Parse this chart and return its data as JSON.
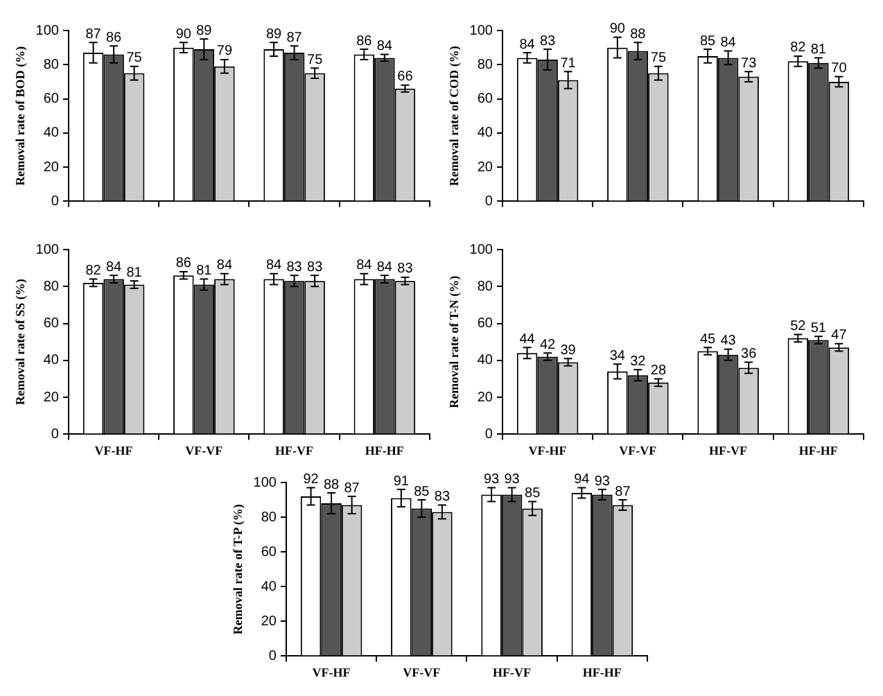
{
  "chart_data": [
    {
      "type": "bar",
      "ylabel": "Removal rate of BOD (%)",
      "categories": [
        null,
        null,
        null,
        null
      ],
      "ylim": [
        0,
        100
      ],
      "yticks": [
        0,
        20,
        40,
        60,
        80,
        100
      ],
      "data_labels": true,
      "legend": false,
      "grid": false,
      "series": [
        {
          "color": "#ffffff",
          "values": [
            87,
            90,
            89,
            86
          ],
          "errors": [
            6,
            3,
            4,
            3
          ]
        },
        {
          "color": "#555555",
          "values": [
            86,
            89,
            87,
            84
          ],
          "errors": [
            5,
            6,
            4,
            2
          ]
        },
        {
          "color": "#cccccc",
          "values": [
            75,
            79,
            75,
            66
          ],
          "errors": [
            4,
            4,
            3,
            2
          ]
        }
      ]
    },
    {
      "type": "bar",
      "ylabel": "Removal rate of COD (%)",
      "categories": [
        null,
        null,
        null,
        null
      ],
      "ylim": [
        0,
        100
      ],
      "yticks": [
        0,
        20,
        40,
        60,
        80,
        100
      ],
      "data_labels": true,
      "legend": false,
      "grid": false,
      "series": [
        {
          "color": "#ffffff",
          "values": [
            84,
            90,
            85,
            82
          ],
          "errors": [
            3,
            6,
            4,
            3
          ]
        },
        {
          "color": "#555555",
          "values": [
            83,
            88,
            84,
            81
          ],
          "errors": [
            6,
            5,
            4,
            3
          ]
        },
        {
          "color": "#cccccc",
          "values": [
            71,
            75,
            73,
            70
          ],
          "errors": [
            5,
            4,
            3,
            3
          ]
        }
      ]
    },
    {
      "type": "bar",
      "ylabel": "Removal rate of SS (%)",
      "categories": [
        "VF-HF",
        "VF-VF",
        "HF-VF",
        "HF-HF"
      ],
      "ylim": [
        0,
        100
      ],
      "yticks": [
        0,
        20,
        40,
        60,
        80,
        100
      ],
      "data_labels": true,
      "legend": false,
      "grid": false,
      "series": [
        {
          "color": "#ffffff",
          "values": [
            82,
            86,
            84,
            84
          ],
          "errors": [
            2,
            2,
            3,
            3
          ]
        },
        {
          "color": "#555555",
          "values": [
            84,
            81,
            83,
            84
          ],
          "errors": [
            2,
            3,
            3,
            2
          ]
        },
        {
          "color": "#cccccc",
          "values": [
            81,
            84,
            83,
            83
          ],
          "errors": [
            2,
            3,
            3,
            2
          ]
        }
      ]
    },
    {
      "type": "bar",
      "ylabel": "Removal rate of T-N (%)",
      "categories": [
        "VF-HF",
        "VF-VF",
        "HF-VF",
        "HF-HF"
      ],
      "ylim": [
        0,
        100
      ],
      "yticks": [
        0,
        20,
        40,
        60,
        80,
        100
      ],
      "data_labels": true,
      "legend": false,
      "grid": false,
      "series": [
        {
          "color": "#ffffff",
          "values": [
            44,
            34,
            45,
            52
          ],
          "errors": [
            3,
            4,
            2,
            2
          ]
        },
        {
          "color": "#555555",
          "values": [
            42,
            32,
            43,
            51
          ],
          "errors": [
            2,
            3,
            3,
            2
          ]
        },
        {
          "color": "#cccccc",
          "values": [
            39,
            28,
            36,
            47
          ],
          "errors": [
            2,
            2,
            3,
            2
          ]
        }
      ]
    },
    {
      "type": "bar",
      "ylabel": "Removal rate of T-P (%)",
      "categories": [
        "VF-HF",
        "VF-VF",
        "HF-VF",
        "HF-HF"
      ],
      "ylim": [
        0,
        100
      ],
      "yticks": [
        0,
        20,
        40,
        60,
        80,
        100
      ],
      "data_labels": true,
      "legend": false,
      "grid": false,
      "series": [
        {
          "color": "#ffffff",
          "values": [
            92,
            91,
            93,
            94
          ],
          "errors": [
            5,
            5,
            4,
            3
          ]
        },
        {
          "color": "#555555",
          "values": [
            88,
            85,
            93,
            93
          ],
          "errors": [
            6,
            5,
            4,
            3
          ]
        },
        {
          "color": "#cccccc",
          "values": [
            87,
            83,
            85,
            87
          ],
          "errors": [
            5,
            4,
            4,
            3
          ]
        }
      ]
    }
  ]
}
